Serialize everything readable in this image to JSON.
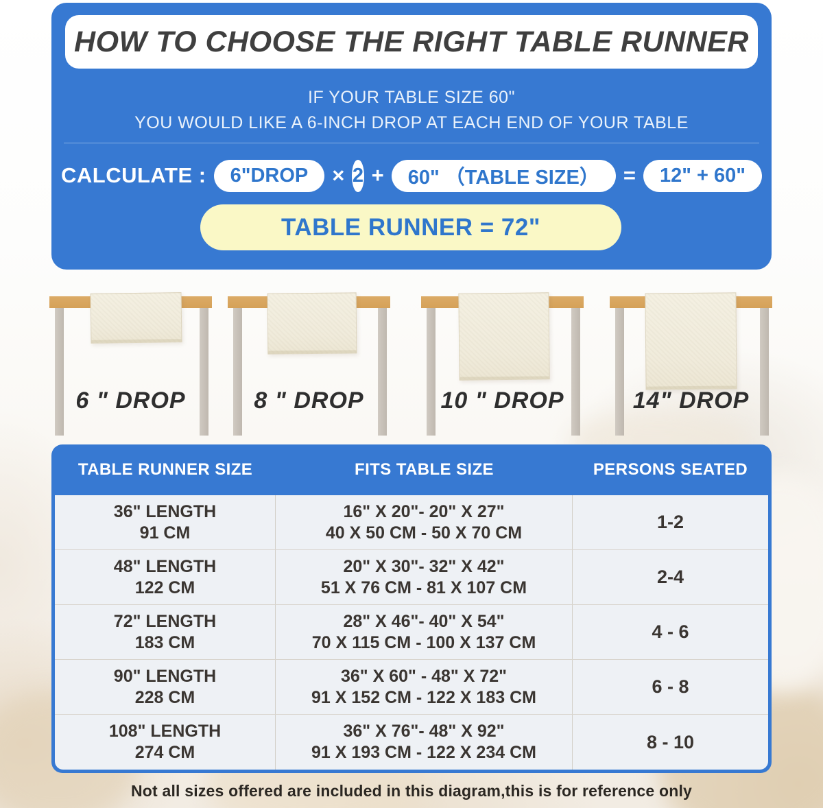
{
  "colors": {
    "panel_blue": "#3779d2",
    "pill_text_blue": "#2f76cc",
    "result_yellow": "#faf8c6",
    "title_text": "#3f3f3f",
    "tabletop_wood": "#d5a158",
    "table_leg_gray": "#c6bfb6",
    "runner_cream": "#f0ebdb"
  },
  "header": {
    "title": "HOW TO CHOOSE THE RIGHT TABLE RUNNER",
    "line1": "IF YOUR TABLE SIZE 60\"",
    "line2": "YOU WOULD LIKE A 6-INCH DROP AT EACH END OF YOUR TABLE",
    "calc_label": "CALCULATE :",
    "operand_drop": "6\"DROP",
    "op_multiply": "×",
    "operand_factor": "2",
    "op_plus": "+",
    "operand_table": "60\" （TABLE SIZE）",
    "op_equals": "=",
    "operand_sum": "12\" + 60\"",
    "result": "TABLE RUNNER = 72\""
  },
  "drops": [
    {
      "label": "6 \" DROP"
    },
    {
      "label": "8 \" DROP"
    },
    {
      "label": "10 \" DROP"
    },
    {
      "label": "14\" DROP"
    }
  ],
  "chart": {
    "headers": [
      "TABLE RUNNER SIZE",
      "FITS TABLE SIZE",
      "PERSONS SEATED"
    ],
    "rows": [
      {
        "size_in": "36\" LENGTH",
        "size_cm": "91 CM",
        "fits_in": "16\" X 20\"- 20\" X 27\"",
        "fits_cm": "40 X 50 CM - 50 X 70 CM",
        "persons": "1-2"
      },
      {
        "size_in": "48\" LENGTH",
        "size_cm": "122 CM",
        "fits_in": "20\" X 30\"- 32\" X 42\"",
        "fits_cm": "51 X 76 CM - 81 X 107 CM",
        "persons": "2-4"
      },
      {
        "size_in": "72\" LENGTH",
        "size_cm": "183 CM",
        "fits_in": "28\" X 46\"- 40\" X 54\"",
        "fits_cm": "70 X 115 CM - 100 X 137 CM",
        "persons": "4 - 6"
      },
      {
        "size_in": "90\" LENGTH",
        "size_cm": "228 CM",
        "fits_in": "36\" X 60\" - 48\" X 72\"",
        "fits_cm": "91 X 152 CM - 122 X 183 CM",
        "persons": "6 - 8"
      },
      {
        "size_in": "108\" LENGTH",
        "size_cm": "274 CM",
        "fits_in": "36\" X 76\"- 48\" X 92\"",
        "fits_cm": "91 X 193 CM - 122 X 234 CM",
        "persons": "8 - 10"
      }
    ]
  },
  "footer_note": "Not all sizes offered are included in this diagram,this is for reference only"
}
